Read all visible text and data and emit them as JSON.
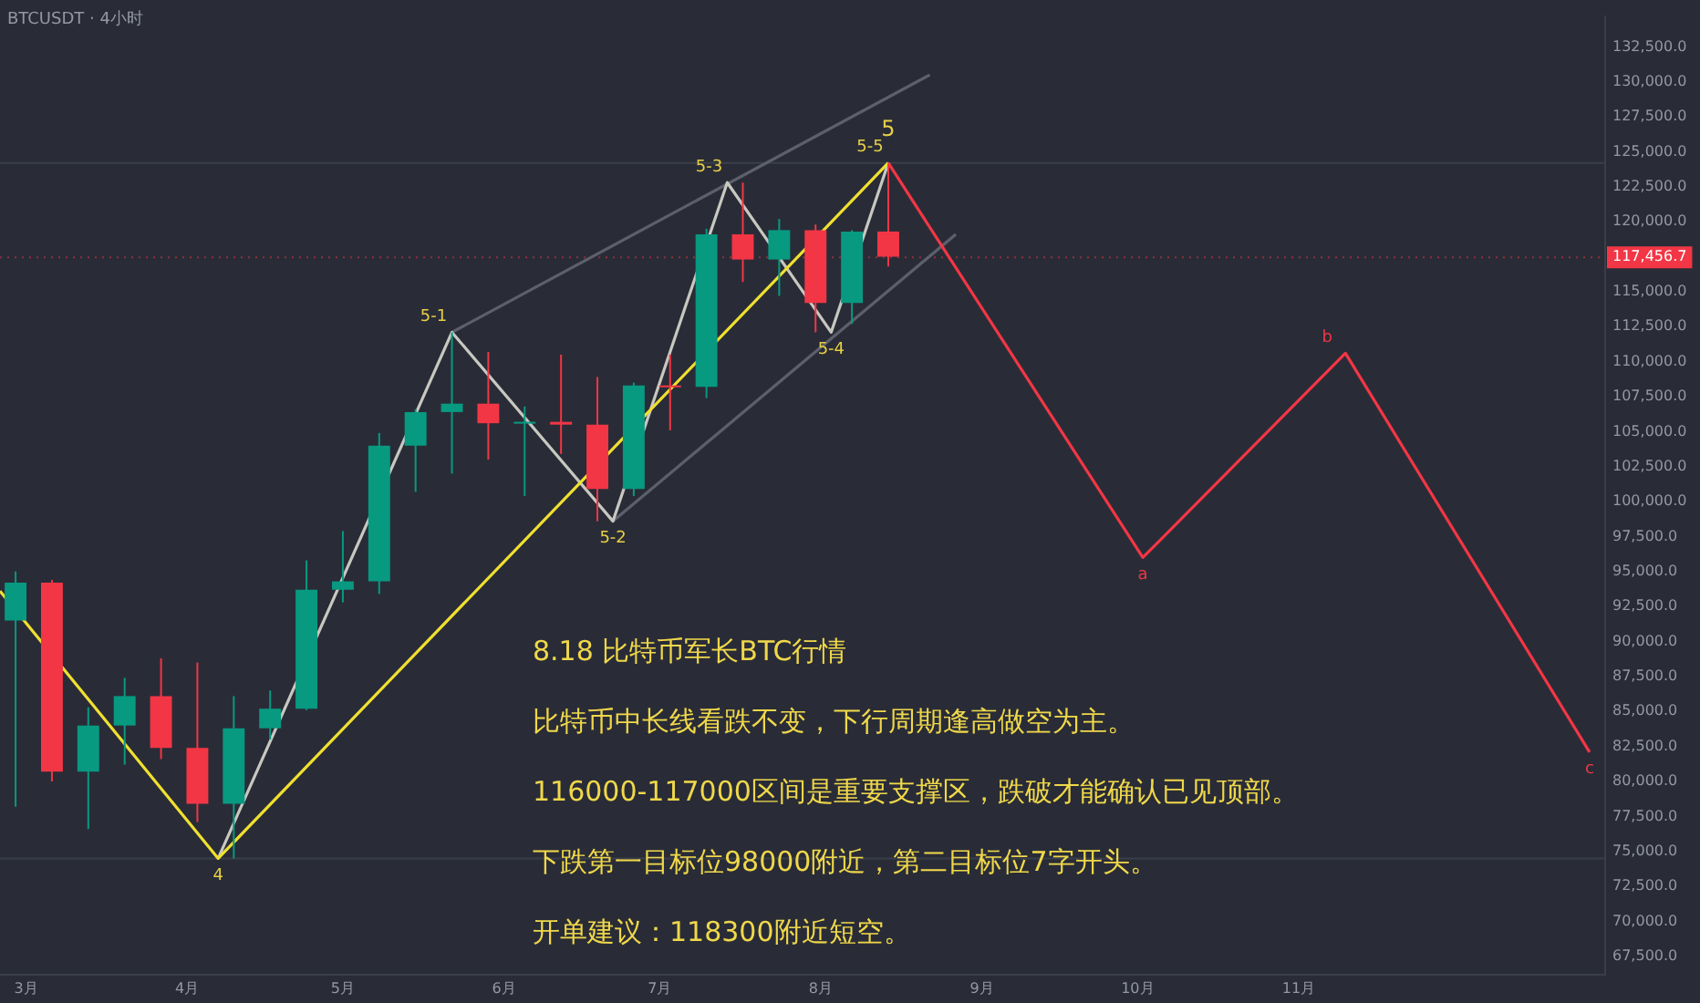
{
  "chart_data": {
    "type": "candlestick",
    "title": "8.18 比特币军长BTC行情",
    "subtitle": "BTCUSDT · 4小时",
    "x": [
      "--02-27",
      "--03-06",
      "--03-13",
      "--03-20",
      "--03-27",
      "--04-03",
      "--04-10",
      "--04-17",
      "--04-24",
      "--05-01",
      "--05-08",
      "--05-15",
      "--05-22",
      "--05-29",
      "--06-05",
      "--06-12",
      "--06-19",
      "--06-26",
      "--07-03",
      "--07-10",
      "--07-17",
      "--07-24",
      "--07-31",
      "--08-07",
      "--08-14"
    ],
    "ohlc": [
      [
        91500,
        95000,
        78200,
        94200
      ],
      [
        94200,
        94400,
        80000,
        80700
      ],
      [
        80700,
        85300,
        76600,
        84000
      ],
      [
        84000,
        87400,
        81200,
        86100
      ],
      [
        86100,
        88800,
        81600,
        82400
      ],
      [
        82400,
        88500,
        77100,
        78400
      ],
      [
        78400,
        86100,
        74500,
        83800
      ],
      [
        83800,
        86500,
        83000,
        85200
      ],
      [
        85200,
        95800,
        85100,
        93700
      ],
      [
        93700,
        97900,
        92800,
        94300
      ],
      [
        94300,
        104900,
        93400,
        104000
      ],
      [
        104000,
        106600,
        100700,
        106400
      ],
      [
        106400,
        112100,
        102000,
        107000
      ],
      [
        107000,
        110700,
        103000,
        105600
      ],
      [
        105600,
        106800,
        100400,
        105700
      ],
      [
        105700,
        110500,
        103400,
        105500
      ],
      [
        105500,
        108900,
        98600,
        100900
      ],
      [
        100900,
        108500,
        100400,
        108300
      ],
      [
        108300,
        110500,
        105100,
        108200
      ],
      [
        108200,
        119500,
        107400,
        119100
      ],
      [
        119100,
        122800,
        115700,
        117300
      ],
      [
        117300,
        120200,
        114700,
        119400
      ],
      [
        119400,
        119800,
        112100,
        114200
      ],
      [
        114200,
        119400,
        112700,
        119300
      ],
      [
        119300,
        124200,
        116800,
        117500
      ]
    ],
    "colors": [
      "#089981",
      "#f23645",
      "#089981",
      "#089981",
      "#f23645",
      "#f23645",
      "#089981",
      "#089981",
      "#089981",
      "#089981",
      "#089981",
      "#089981",
      "#089981",
      "#f23645",
      "#089981",
      "#f23645",
      "#f23645",
      "#089981",
      "#f23645",
      "#089981",
      "#f23645",
      "#089981",
      "#f23645",
      "#089981",
      "#f23645"
    ],
    "series": [
      {
        "type": "line",
        "color": "#f0e030",
        "x": [
          "--02-24",
          "--04-07",
          "--08-14"
        ],
        "values": [
          93600,
          74500,
          124200
        ]
      },
      {
        "type": "line",
        "color": "#c8c8c0",
        "x": [
          "--04-07",
          "--05-22",
          "--06-22",
          "--07-14",
          "--08-03",
          "--08-14"
        ],
        "values": [
          74500,
          112100,
          98600,
          122800,
          112100,
          124200
        ]
      },
      {
        "type": "line",
        "color": "#f23645",
        "x": [
          "--08-14",
          "--10-02",
          "--11-10",
          "--12-27"
        ],
        "values": [
          124200,
          96000,
          110600,
          82100
        ]
      },
      {
        "type": "line",
        "color": "#5d606b",
        "x": [
          "--05-22",
          "--08-22"
        ],
        "values": [
          112100,
          130500
        ]
      },
      {
        "type": "line",
        "color": "#5d606b",
        "x": [
          "--06-22",
          "--08-27"
        ],
        "values": [
          98600,
          119100
        ]
      }
    ],
    "ref_lines": [
      {
        "axis": "y",
        "value": 124200,
        "label": null,
        "color": "#3a3e4a"
      },
      {
        "axis": "y",
        "value": 74500,
        "label": null,
        "color": "#3a3e4a"
      },
      {
        "axis": "y",
        "value": 117456.7,
        "label": "117,456.7",
        "color": "#f23645"
      }
    ],
    "annotations": [
      {
        "text": "4",
        "x": "--04-07",
        "y": 74500
      },
      {
        "text": "5-1",
        "x": "--05-22",
        "y": 112100
      },
      {
        "text": "5-2",
        "x": "--06-22",
        "y": 98600
      },
      {
        "text": "5-3",
        "x": "--07-14",
        "y": 122800
      },
      {
        "text": "5-4",
        "x": "--08-03",
        "y": 112100
      },
      {
        "text": "5-5",
        "x": "--08-14",
        "y": 124200
      },
      {
        "text": "5",
        "x": "--08-14",
        "y": 124200
      },
      {
        "text": "a",
        "x": "--10-02",
        "y": 96000
      },
      {
        "text": "b",
        "x": "--11-10",
        "y": 110600
      },
      {
        "text": "c",
        "x": "--12-27",
        "y": 82100
      },
      "比特币中长线看跌不变，下行周期逢高做空为主。",
      "116000-117000区间是重要支撑区，跌破才能确认已见顶部。",
      "下跌第一目标位98000附近，第二目标位7字开头。",
      "开单建议：118300附近短空。"
    ],
    "xlim": [
      "--02-24",
      "--12-30"
    ],
    "xticks": [
      {
        "value": "--03-01",
        "label": "3月"
      },
      {
        "value": "--04-01",
        "label": "4月"
      },
      {
        "value": "--05-01",
        "label": "5月"
      },
      {
        "value": "--06-01",
        "label": "6月"
      },
      {
        "value": "--07-01",
        "label": "7月"
      },
      {
        "value": "--08-01",
        "label": "8月"
      },
      {
        "value": "--09-01",
        "label": "9月"
      },
      {
        "value": "--10-01",
        "label": "10月"
      },
      {
        "value": "--11-01",
        "label": "11月"
      }
    ],
    "ylim": [
      66200,
      134700
    ],
    "yticks": [
      {
        "value": 67500,
        "label": "67,500.0"
      },
      {
        "value": 70000,
        "label": "70,000.0"
      },
      {
        "value": 72500,
        "label": "72,500.0"
      },
      {
        "value": 75000,
        "label": "75,000.0"
      },
      {
        "value": 77500,
        "label": "77,500.0"
      },
      {
        "value": 80000,
        "label": "80,000.0"
      },
      {
        "value": 82500,
        "label": "82,500.0"
      },
      {
        "value": 85000,
        "label": "85,000.0"
      },
      {
        "value": 87500,
        "label": "87,500.0"
      },
      {
        "value": 90000,
        "label": "90,000.0"
      },
      {
        "value": 92500,
        "label": "92,500.0"
      },
      {
        "value": 95000,
        "label": "95,000.0"
      },
      {
        "value": 97500,
        "label": "97,500.0"
      },
      {
        "value": 100000,
        "label": "100,000.0"
      },
      {
        "value": 102500,
        "label": "102,500.0"
      },
      {
        "value": 105000,
        "label": "105,000.0"
      },
      {
        "value": 107500,
        "label": "107,500.0"
      },
      {
        "value": 110000,
        "label": "110,000.0"
      },
      {
        "value": 112500,
        "label": "112,500.0"
      },
      {
        "value": 115000,
        "label": "115,000.0"
      },
      {
        "value": 120000,
        "label": "120,000.0"
      },
      {
        "value": 122500,
        "label": "122,500.0"
      },
      {
        "value": 125000,
        "label": "125,000.0"
      },
      {
        "value": 127500,
        "label": "127,500.0"
      },
      {
        "value": 130000,
        "label": "130,000.0"
      },
      {
        "value": 132500,
        "label": "132,500.0"
      }
    ]
  }
}
